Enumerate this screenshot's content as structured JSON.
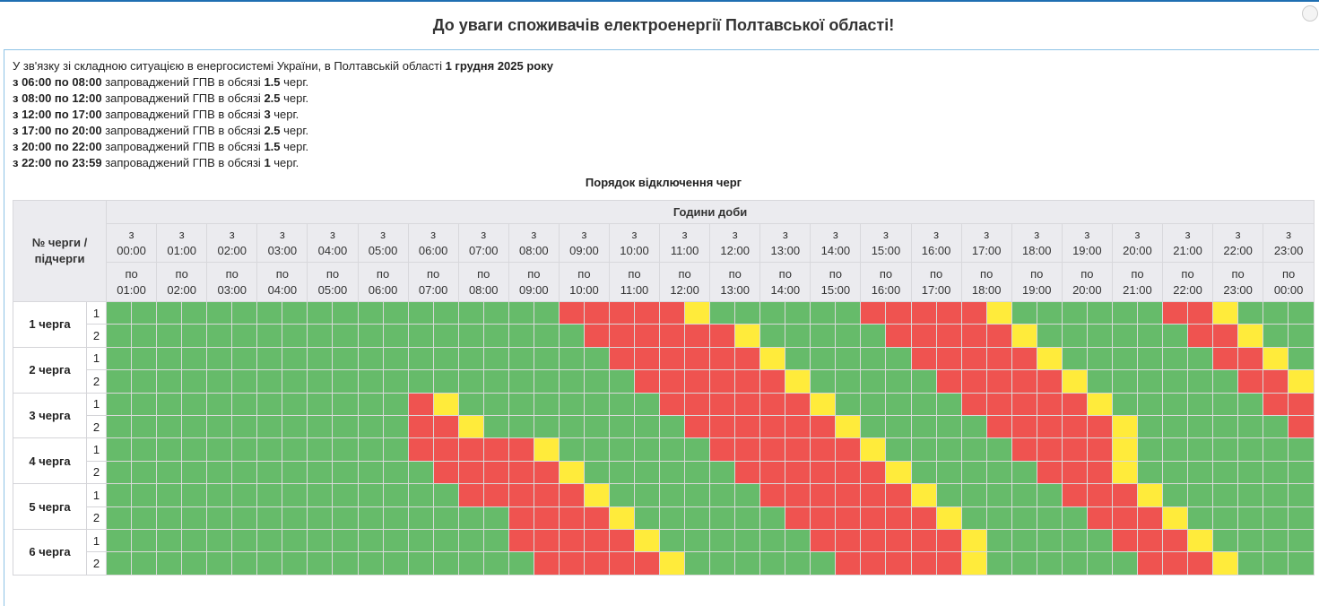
{
  "title": "До уваги споживачів електроенергії Полтавської області!",
  "notice": {
    "intro": "У зв'язку зі складною ситуацією в енергосистемі України, в Полтавській області ",
    "intro_bold": "1 грудня 2025 року",
    "lines": [
      {
        "period": "з 06:00 по 08:00",
        "text": " запроваджений ГПВ в обсязі ",
        "amount": "1.5",
        "unit": " черг."
      },
      {
        "period": "з 08:00 по 12:00",
        "text": " запроваджений ГПВ в обсязі ",
        "amount": "2.5",
        "unit": " черг."
      },
      {
        "period": "з 12:00 по 17:00",
        "text": " запроваджений ГПВ в обсязі ",
        "amount": "3",
        "unit": " черг."
      },
      {
        "period": "з 17:00 по 20:00",
        "text": " запроваджений ГПВ в обсязі ",
        "amount": "2.5",
        "unit": " черг."
      },
      {
        "period": "з 20:00 по 22:00",
        "text": " запроваджений ГПВ в обсязі ",
        "amount": "1.5",
        "unit": " черг."
      },
      {
        "period": "з 22:00 по 23:59",
        "text": " запроваджений ГПВ в обсязі ",
        "amount": "1",
        "unit": " черг."
      }
    ]
  },
  "table": {
    "caption": "Порядок відключення черг",
    "queue_header": "№ черги / підчерги",
    "hours_header": "Години доби",
    "from_prefix": "з",
    "to_prefix": "по",
    "hours_from": [
      "00:00",
      "01:00",
      "02:00",
      "03:00",
      "04:00",
      "05:00",
      "06:00",
      "07:00",
      "08:00",
      "09:00",
      "10:00",
      "11:00",
      "12:00",
      "13:00",
      "14:00",
      "15:00",
      "16:00",
      "17:00",
      "18:00",
      "19:00",
      "20:00",
      "21:00",
      "22:00",
      "23:00"
    ],
    "hours_to": [
      "01:00",
      "02:00",
      "03:00",
      "04:00",
      "05:00",
      "06:00",
      "07:00",
      "08:00",
      "09:00",
      "10:00",
      "11:00",
      "12:00",
      "13:00",
      "14:00",
      "15:00",
      "16:00",
      "17:00",
      "18:00",
      "19:00",
      "20:00",
      "21:00",
      "22:00",
      "23:00",
      "00:00"
    ],
    "legend_colors": {
      "G": "#66bb6a",
      "R": "#ef5350",
      "Y": "#ffeb3b"
    },
    "legend_meaning": {
      "G": "on",
      "R": "off",
      "Y": "possible"
    },
    "queues": [
      {
        "label": "1 черга",
        "sub": [
          {
            "n": "1",
            "slots": "GGGGGGGGGGGGGGGGGGRRRRRYGGGGGGRRRRRYGGGGGGRRYGGG"
          },
          {
            "n": "2",
            "slots": "GGGGGGGGGGGGGGGGGGGRRRRRRYGGGGGRRRRRYGGGGGGRRYGG"
          }
        ]
      },
      {
        "label": "2 черга",
        "sub": [
          {
            "n": "1",
            "slots": "GGGGGGGGGGGGGGGGGGGGRRRRRRYGGGGGRRRRRYGGGGGGRRYG"
          },
          {
            "n": "2",
            "slots": "GGGGGGGGGGGGGGGGGGGGGRRRRRRYGGGGGRRRRRYGGGGGGRRY"
          }
        ]
      },
      {
        "label": "3 черга",
        "sub": [
          {
            "n": "1",
            "slots": "GGGGGGGGGGGGRYGGGGGGGGRRRRRRYGGGGGRRRRRYGGGGGGRR"
          },
          {
            "n": "2",
            "slots": "GGGGGGGGGGGGRRYGGGGGGGGRRRRRRYGGGGGRRRRRYGGGGGGR"
          }
        ]
      },
      {
        "label": "4 черга",
        "sub": [
          {
            "n": "1",
            "slots": "GGGGGGGGGGGGRRRRRYGGGGGGRRRRRRYGGGGGRRRRYGGGGGGG"
          },
          {
            "n": "2",
            "slots": "GGGGGGGGGGGGGRRRRRYGGGGGGRRRRRRYGGGGGRRRYGGGGGGG"
          }
        ]
      },
      {
        "label": "5 черга",
        "sub": [
          {
            "n": "1",
            "slots": "GGGGGGGGGGGGGGRRRRRYGGGGGGRRRRRRYGGGGGRRRYGGGGGG"
          },
          {
            "n": "2",
            "slots": "GGGGGGGGGGGGGGGGRRRRYGGGGGGRRRRRRYGGGGGRRRYGGGGG"
          }
        ]
      },
      {
        "label": "6 черга",
        "sub": [
          {
            "n": "1",
            "slots": "GGGGGGGGGGGGGGGGRRRRRYGGGGGGRRRRRRYGGGGGRRRYGGGG"
          },
          {
            "n": "2",
            "slots": "GGGGGGGGGGGGGGGGGRRRRRYGGGGGGRRRRRYGGGGGGRRRYGGG"
          }
        ]
      }
    ]
  }
}
